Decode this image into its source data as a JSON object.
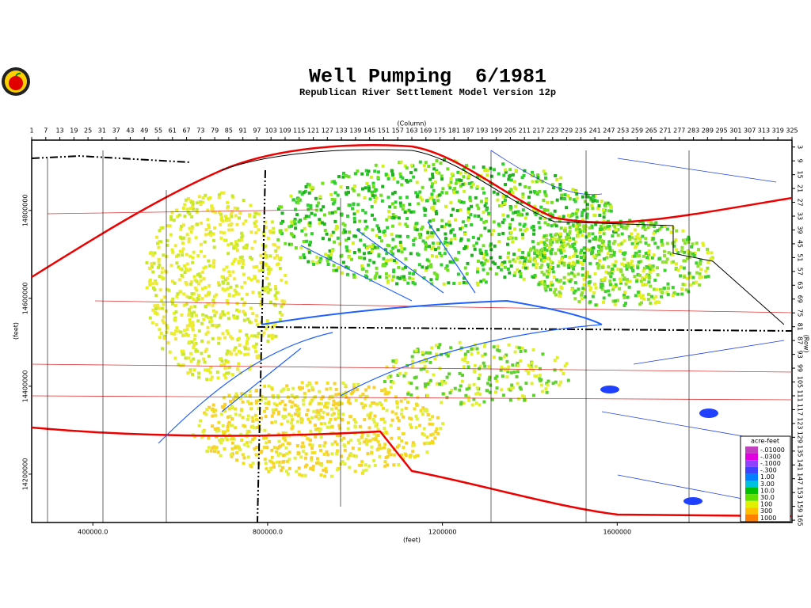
{
  "title": "Well Pumping  6/1981",
  "subtitle": "Republican River Settlement Model Version 12p",
  "column_label": "(Column)",
  "row_label": "(Row)",
  "x_feet_label": "(feet)",
  "y_feet_label": "(feet)",
  "columns": [
    1,
    7,
    13,
    19,
    25,
    31,
    37,
    43,
    49,
    55,
    61,
    67,
    73,
    79,
    85,
    91,
    97,
    103,
    109,
    115,
    121,
    127,
    133,
    139,
    145,
    151,
    157,
    163,
    169,
    175,
    181,
    187,
    193,
    199,
    205,
    211,
    217,
    223,
    229,
    235,
    241,
    247,
    253,
    259,
    265,
    271,
    277,
    283,
    289,
    295,
    301,
    307,
    313,
    319,
    325
  ],
  "rows": [
    3,
    9,
    15,
    21,
    27,
    33,
    39,
    45,
    51,
    57,
    63,
    69,
    75,
    81,
    87,
    93,
    99,
    105,
    111,
    117,
    123,
    129,
    135,
    141,
    147,
    153,
    159,
    165
  ],
  "xlim": [
    260000,
    2000000
  ],
  "xticks": [
    {
      "value": 400000,
      "label": "400000.0"
    },
    {
      "value": 800000,
      "label": "800000.0"
    },
    1200000,
    1600000
  ],
  "ylim": [
    14090000,
    14960000
  ],
  "yticks": [
    14800000,
    14600000,
    14400000,
    14200000
  ],
  "legend": {
    "title": "acre-feet",
    "entries": [
      {
        "label": "-.01000",
        "color": "#c040c0"
      },
      {
        "label": "-.0300",
        "color": "#e000e0"
      },
      {
        "label": "-.1000",
        "color": "#9040ff"
      },
      {
        "label": "-.300",
        "color": "#4040ff"
      },
      {
        "label": "1.00",
        "color": "#0080ff"
      },
      {
        "label": "3.00",
        "color": "#00c0e0"
      },
      {
        "label": "10.0",
        "color": "#00c000"
      },
      {
        "label": "30.0",
        "color": "#60e000"
      },
      {
        "label": "100",
        "color": "#e0f000"
      },
      {
        "label": "300",
        "color": "#ffc000"
      },
      {
        "label": "1000",
        "color": "#ff8000"
      }
    ]
  }
}
